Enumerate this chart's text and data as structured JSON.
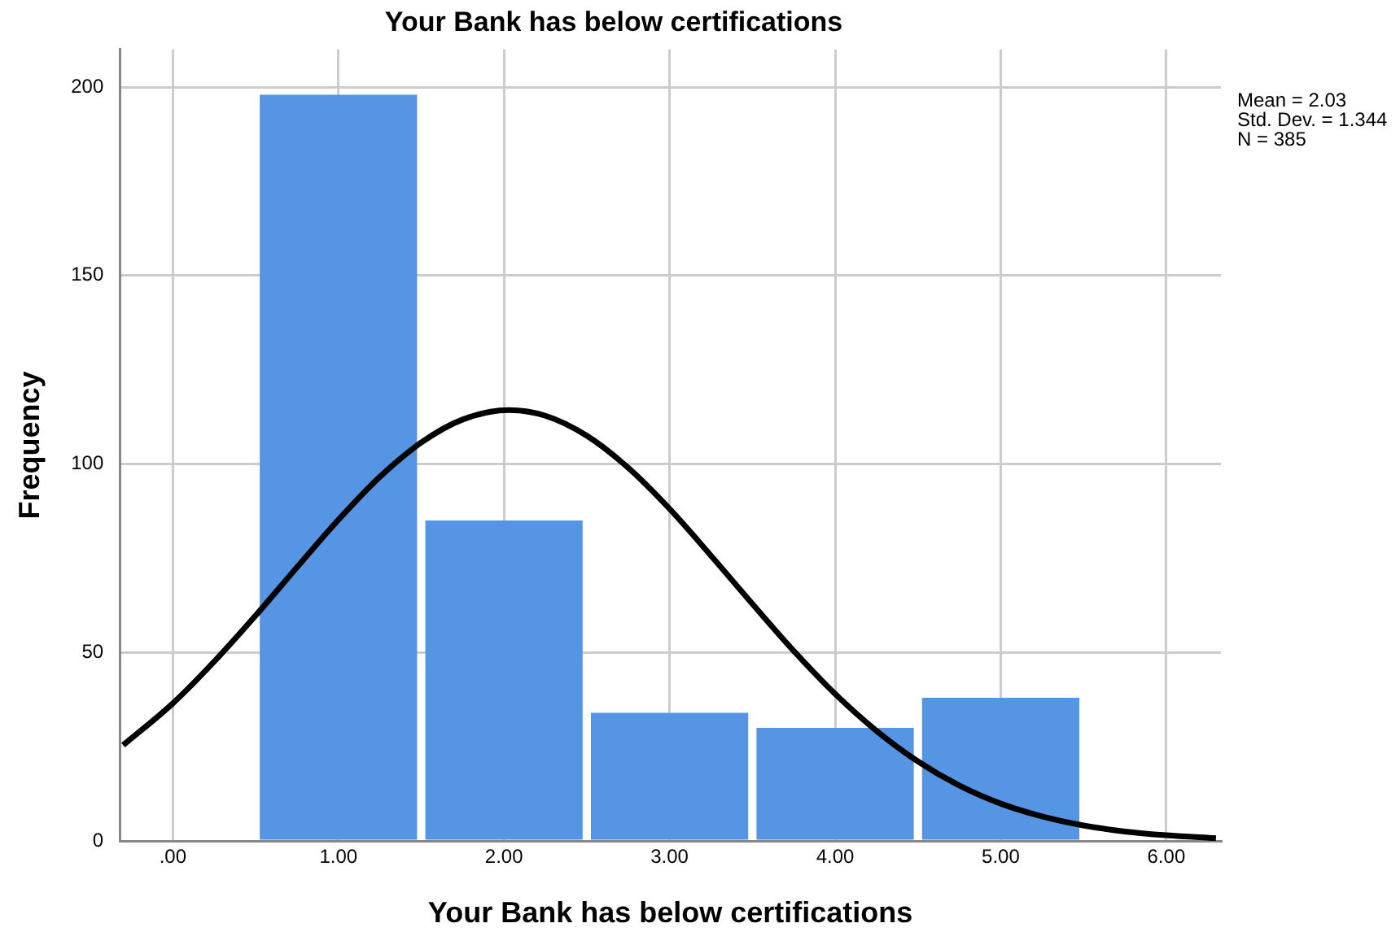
{
  "chart_data": {
    "type": "histogram",
    "title": "Your Bank has below certifications",
    "xlabel": "Your Bank has below certifications",
    "ylabel": "Frequency",
    "bins": [
      0.5,
      1.5,
      2.5,
      3.5,
      4.5,
      5.5
    ],
    "values": [
      198,
      85,
      34,
      30,
      38
    ],
    "color": "#5595e3",
    "series": [
      {
        "type": "line",
        "color": "#000000",
        "x": [
          -0.3,
          0,
          0.25,
          0.5,
          0.75,
          1,
          1.25,
          1.5,
          1.75,
          2.03,
          2.25,
          2.5,
          2.75,
          3,
          3.25,
          3.5,
          3.75,
          4,
          4.25,
          4.5,
          4.75,
          5,
          5.25,
          5.5,
          5.75,
          6,
          6.3
        ],
        "values": [
          25.4,
          36.5,
          47.6,
          59.8,
          72.6,
          85.2,
          96.6,
          105.7,
          111.8,
          114.3,
          112.8,
          107.5,
          99.0,
          88.1,
          75.7,
          62.9,
          50.4,
          39.0,
          29.2,
          21.1,
          14.7,
          9.9,
          6.5,
          4.1,
          2.5,
          1.5,
          0.7
        ]
      }
    ],
    "xlim": [
      -0.32,
      6.33
    ],
    "xticks": [
      {
        "value": 0,
        "label": ".00"
      },
      {
        "value": 1,
        "label": "1.00"
      },
      {
        "value": 2,
        "label": "2.00"
      },
      {
        "value": 3,
        "label": "3.00"
      },
      {
        "value": 4,
        "label": "4.00"
      },
      {
        "value": 5,
        "label": "5.00"
      },
      {
        "value": 6,
        "label": "6.00"
      }
    ],
    "ylim": [
      0,
      210
    ],
    "yticks": [
      0,
      50,
      100,
      150,
      200
    ],
    "grid": true,
    "marker": "none",
    "line_style": "solid",
    "annotations": [
      "Mean = 2.03",
      "Std. Dev. = 1.344",
      "N = 385"
    ]
  }
}
